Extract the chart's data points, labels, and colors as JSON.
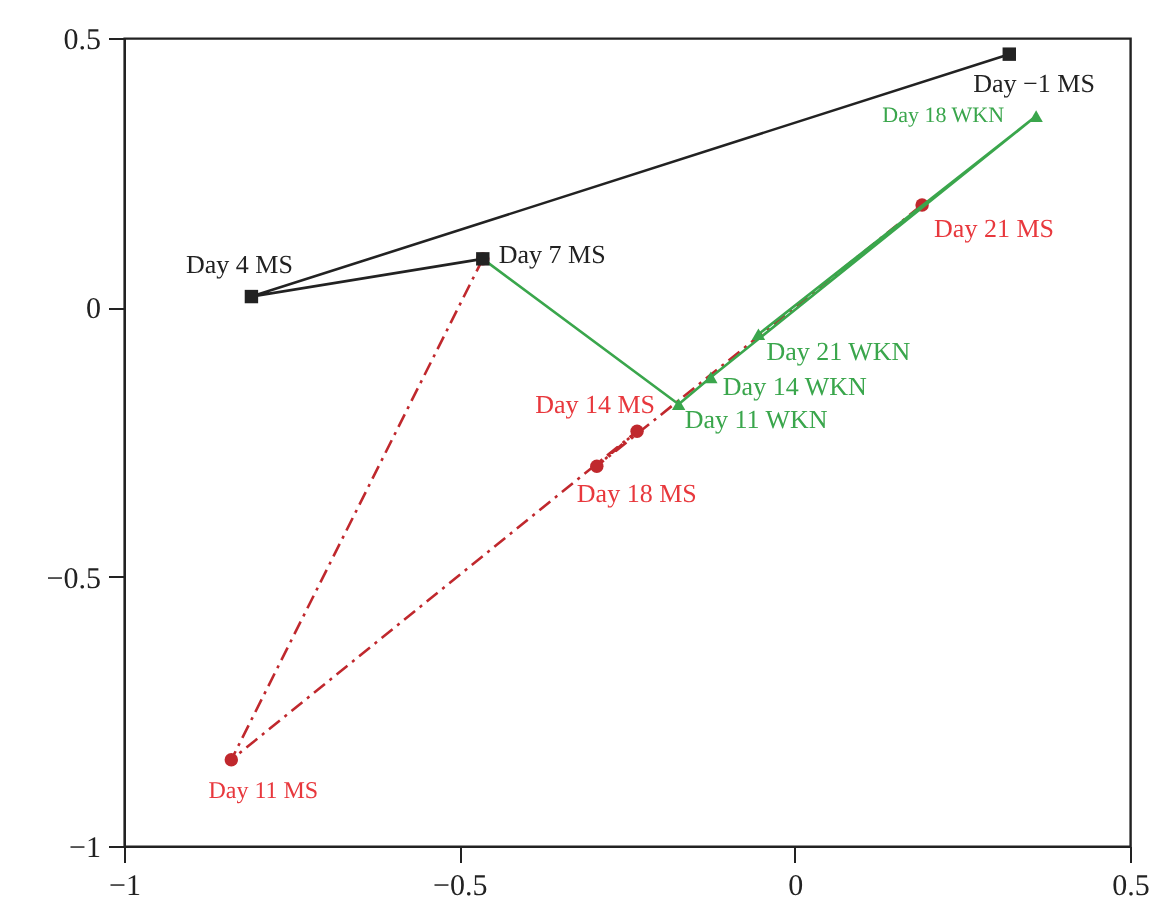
{
  "chart_data": {
    "type": "line",
    "xlim": [
      -1,
      0.5
    ],
    "ylim": [
      -1,
      0.5
    ],
    "xticks": [
      -1,
      -0.5,
      0,
      0.5
    ],
    "yticks": [
      -1,
      -0.5,
      0,
      0.5
    ],
    "grid": false,
    "series": [
      {
        "color": "#c0282d",
        "marker": "circle",
        "line_style": "dashdot",
        "x": [
          -0.465,
          -0.84,
          -0.235,
          -0.295,
          0.19
        ],
        "values": [
          0.09,
          -0.84,
          -0.23,
          -0.295,
          0.19
        ]
      },
      {
        "color": "#3aa64c",
        "marker": "triangle",
        "line_style": "solid",
        "x": [
          -0.465,
          -0.173,
          -0.125,
          0.36,
          -0.054
        ],
        "values": [
          0.09,
          -0.18,
          -0.13,
          0.355,
          -0.05
        ]
      },
      {
        "color": "#222222",
        "marker": "square",
        "line_style": "solid",
        "x": [
          0.32,
          -0.81,
          -0.465
        ],
        "values": [
          0.47,
          0.02,
          0.09
        ]
      }
    ],
    "annotations": [
      {
        "text": "Day −1 MS",
        "x": 0.32,
        "y": 0.47
      },
      {
        "text": "Day 4 MS",
        "x": -0.81,
        "y": 0.02
      },
      {
        "text": "Day 7 MS",
        "x": -0.465,
        "y": 0.09
      },
      {
        "text": "Day 11 MS",
        "x": -0.84,
        "y": -0.84
      },
      {
        "text": "Day 14 MS",
        "x": -0.235,
        "y": -0.23
      },
      {
        "text": "Day 18 MS",
        "x": -0.295,
        "y": -0.295
      },
      {
        "text": "Day 21 MS",
        "x": 0.19,
        "y": 0.19
      },
      {
        "text": "Day 11 WKN",
        "x": -0.173,
        "y": -0.18
      },
      {
        "text": "Day 14 WKN",
        "x": -0.125,
        "y": -0.13
      },
      {
        "text": "Day 18 WKN",
        "x": 0.36,
        "y": 0.355
      },
      {
        "text": "Day 21 WKN",
        "x": -0.054,
        "y": -0.05
      }
    ]
  }
}
